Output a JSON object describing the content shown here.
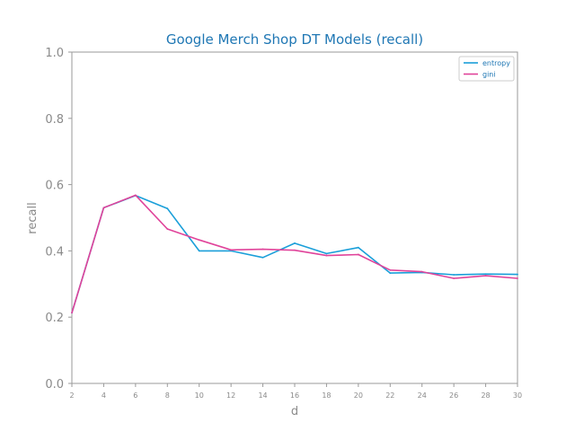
{
  "chart_data": {
    "type": "line",
    "title": "Google Merch Shop DT Models (recall)",
    "xlabel": "d",
    "ylabel": "recall",
    "x": [
      2,
      4,
      6,
      8,
      10,
      12,
      14,
      16,
      18,
      20,
      22,
      24,
      26,
      28,
      30
    ],
    "xlim": [
      2,
      30
    ],
    "ylim": [
      0.0,
      1.0
    ],
    "xticks": [
      "2",
      "4",
      "6",
      "8",
      "10",
      "12",
      "14",
      "16",
      "18",
      "20",
      "22",
      "24",
      "26",
      "28",
      "30"
    ],
    "yticks": [
      "0.0",
      "0.2",
      "0.4",
      "0.6",
      "0.8",
      "1.0"
    ],
    "grid": false,
    "legend_position": "top-right",
    "series": [
      {
        "name": "entropy",
        "color": "#1a9fd9",
        "values": [
          0.213,
          0.53,
          0.567,
          0.528,
          0.4,
          0.4,
          0.38,
          0.423,
          0.392,
          0.41,
          0.333,
          0.335,
          0.328,
          0.33,
          0.329
        ]
      },
      {
        "name": "gini",
        "color": "#e0439a",
        "values": [
          0.213,
          0.53,
          0.568,
          0.466,
          0.433,
          0.403,
          0.405,
          0.402,
          0.386,
          0.389,
          0.342,
          0.337,
          0.317,
          0.325,
          0.317
        ]
      }
    ]
  }
}
